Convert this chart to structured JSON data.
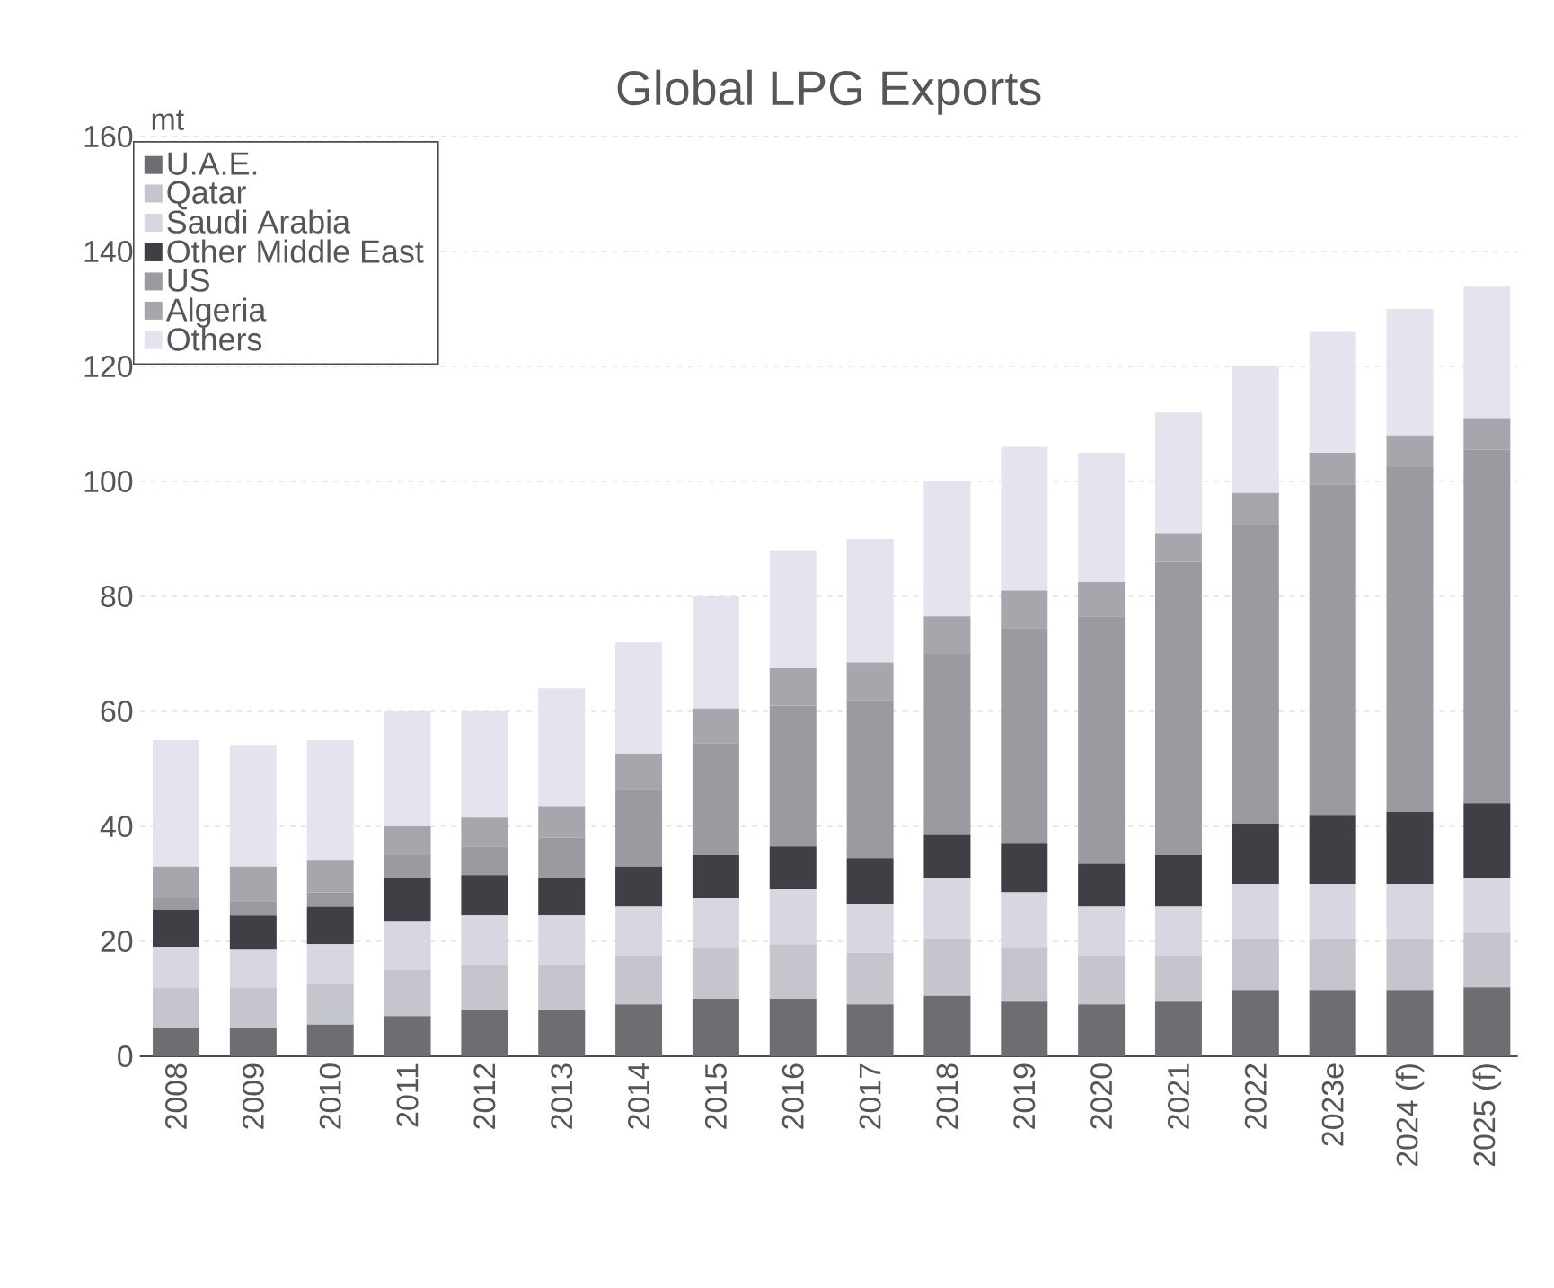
{
  "chart_data": {
    "type": "bar",
    "stacked": true,
    "title": "Global LPG Exports",
    "ylabel": "mt",
    "categories": [
      "2008",
      "2009",
      "2010",
      "2011",
      "2012",
      "2013",
      "2014",
      "2015",
      "2016",
      "2017",
      "2018",
      "2019",
      "2020",
      "2021",
      "2022",
      "2023e",
      "2024 (f)",
      "2025 (f)"
    ],
    "series": [
      {
        "name": "U.A.E.",
        "color": "#6e6e72",
        "values": [
          5,
          5,
          5.5,
          7,
          8,
          8,
          9,
          10,
          10,
          9,
          10.5,
          9.5,
          9,
          9.5,
          11.5,
          11.5,
          11.5,
          12
        ]
      },
      {
        "name": "Qatar",
        "color": "#c4c5cd",
        "values": [
          7,
          7,
          7,
          8,
          8,
          8,
          8.5,
          9,
          9.5,
          9,
          10,
          9.5,
          8.5,
          8,
          9,
          9,
          9,
          9.5
        ]
      },
      {
        "name": "Saudi Arabia",
        "color": "#d6d7e0",
        "values": [
          7,
          6.5,
          7,
          8.5,
          8.5,
          8.5,
          8.5,
          8.5,
          9.5,
          8.5,
          10.5,
          9.5,
          8.5,
          8.5,
          9.5,
          9.5,
          9.5,
          9.5
        ]
      },
      {
        "name": "Other Middle East",
        "color": "#3e4045",
        "values": [
          6.5,
          6,
          6.5,
          7.5,
          7,
          6.5,
          7,
          7.5,
          7.5,
          8,
          7.5,
          8.5,
          7.5,
          9,
          10.5,
          12,
          12.5,
          13
        ]
      },
      {
        "name": "US",
        "color": "#9a9ba1",
        "values": [
          2,
          2.5,
          2.5,
          4,
          5,
          7,
          13.5,
          19.5,
          24.5,
          27.5,
          31.5,
          37.5,
          43,
          51,
          52,
          57.5,
          60,
          61.5
        ]
      },
      {
        "name": "Algeria",
        "color": "#a6a7ad",
        "values": [
          5.5,
          6,
          5.5,
          5,
          5,
          5.5,
          6,
          6,
          6.5,
          6.5,
          6.5,
          6.5,
          6,
          5,
          5.5,
          5.5,
          5.5,
          5.5
        ]
      },
      {
        "name": "Others",
        "color": "#e3e4ee",
        "values": [
          22,
          21,
          21,
          20,
          18.5,
          20.5,
          19.5,
          19.5,
          20.5,
          21.5,
          23.5,
          25,
          22.5,
          21,
          22,
          21,
          22,
          23
        ]
      }
    ],
    "ylim": [
      0,
      160
    ],
    "yticks": [
      0,
      20,
      40,
      60,
      80,
      100,
      120,
      140,
      160
    ],
    "grid": "y",
    "legend": "top left"
  }
}
